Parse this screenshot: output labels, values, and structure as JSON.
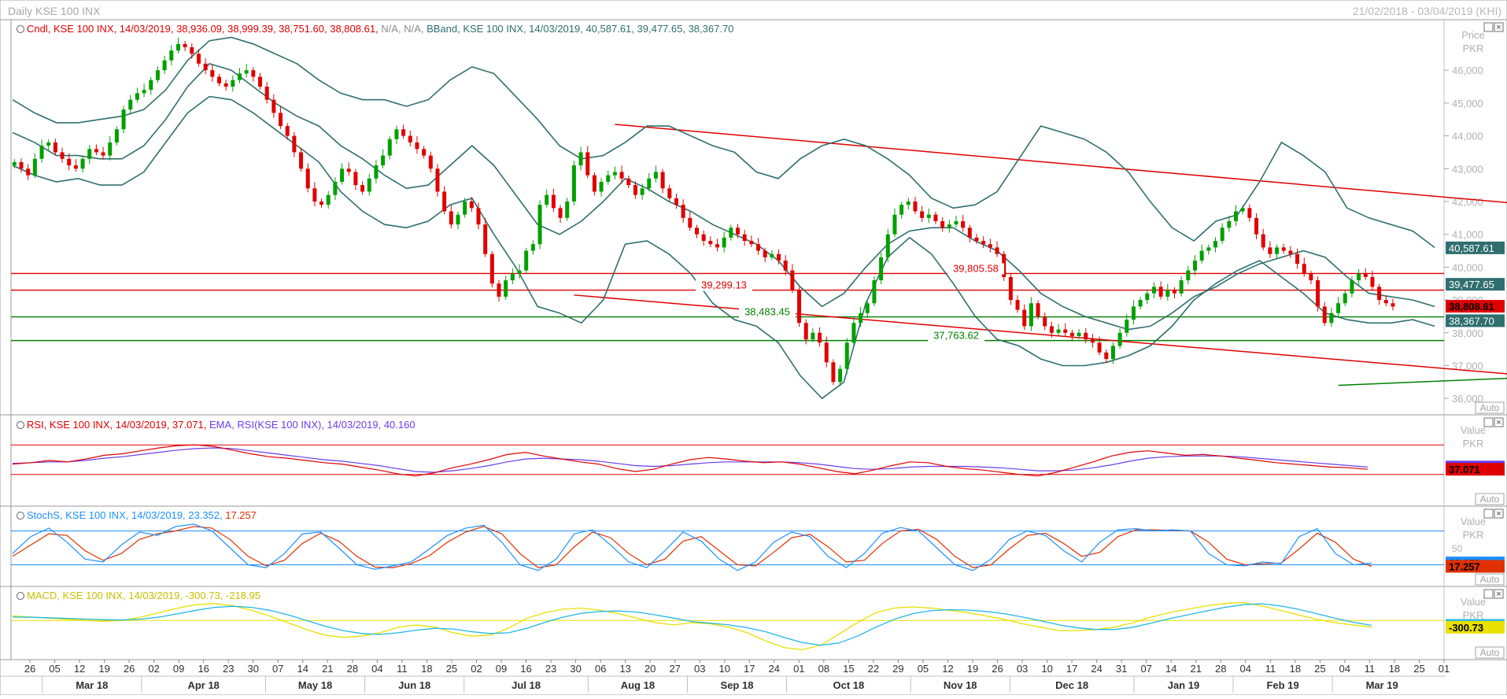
{
  "window": {
    "title": "Daily KSE 100 INX",
    "date_range": "21/02/2018 - 03/04/2019 (KHI)",
    "auto_label": "Auto"
  },
  "colors": {
    "candle_up": "#00a000",
    "candle_down": "#e00000",
    "bband": "#2f6f6f",
    "resistance": "#e00000",
    "support": "#008000",
    "rsi": "#e00000",
    "rsi_ema": "#6a3df0",
    "stoch_k": "#1e90ff",
    "stoch_d": "#e03000",
    "macd": "#e8e000",
    "macd_signal": "#20b8e8"
  },
  "chart_data": [
    {
      "type": "candlestick",
      "panel": "price",
      "legend": [
        {
          "text": "Cndl, KSE 100 INX, 14/03/2019, 38,936.09, 38,999.39, 38,751.60, 38,808.61, ",
          "color": "#e00000"
        },
        {
          "text": "N/A, N/A, ",
          "color": "#8a8a8a"
        },
        {
          "text": "BBand, KSE 100 INX, 14/03/2019, 40,587.61, 39,477.65, 38,367.70",
          "color": "#2f6f6f"
        }
      ],
      "axis_title": [
        "Price",
        "PKR"
      ],
      "ylim": [
        35500,
        47300
      ],
      "y_ticks": [
        36000,
        37000,
        38000,
        39000,
        40000,
        41000,
        42000,
        43000,
        44000,
        45000,
        46000
      ],
      "y_tick_labels": [
        "36,000",
        "37,000",
        "38,000",
        "39,000",
        "40,000",
        "41,000",
        "42,000",
        "43,000",
        "44,000",
        "45,000",
        "46,000"
      ],
      "x_ticks": [
        "26",
        "05",
        "12",
        "19",
        "26",
        "02",
        "09",
        "16",
        "23",
        "30",
        "07",
        "14",
        "21",
        "28",
        "04",
        "11",
        "18",
        "25",
        "02",
        "09",
        "16",
        "23",
        "30",
        "06",
        "13",
        "20",
        "27",
        "03",
        "10",
        "17",
        "24",
        "01",
        "08",
        "15",
        "22",
        "29",
        "05",
        "12",
        "19",
        "26",
        "03",
        "10",
        "17",
        "24",
        "31",
        "07",
        "14",
        "21",
        "28",
        "04",
        "11",
        "18",
        "25",
        "04",
        "11",
        "18",
        "25",
        "01"
      ],
      "months": [
        "Mar 18",
        "Apr 18",
        "May 18",
        "Jun 18",
        "Jul 18",
        "Aug 18",
        "Sep 18",
        "Oct 18",
        "Nov 18",
        "Dec 18",
        "Jan 19",
        "Feb 19",
        "Mar 19"
      ],
      "close": [
        43200,
        43000,
        42800,
        43300,
        43700,
        43800,
        43500,
        43300,
        43100,
        43000,
        43300,
        43600,
        43500,
        43400,
        43800,
        44200,
        44800,
        45100,
        45300,
        45400,
        45700,
        46000,
        46300,
        46600,
        46800,
        46700,
        46500,
        46200,
        46000,
        45800,
        45600,
        45500,
        45700,
        45900,
        46000,
        45800,
        45500,
        45100,
        44700,
        44300,
        44000,
        43500,
        43000,
        42400,
        42000,
        41900,
        42200,
        42600,
        43000,
        42900,
        42500,
        42300,
        42700,
        43100,
        43400,
        43900,
        44200,
        44000,
        43800,
        43600,
        43400,
        43000,
        42300,
        41700,
        41300,
        41600,
        42000,
        41800,
        41300,
        40400,
        39500,
        39100,
        39600,
        39800,
        39900,
        40500,
        40700,
        41900,
        42200,
        41800,
        41500,
        42000,
        43100,
        43500,
        42800,
        42300,
        42600,
        42800,
        42900,
        42700,
        42500,
        42200,
        42400,
        42700,
        42900,
        42400,
        42100,
        41900,
        41500,
        41200,
        41000,
        40800,
        40700,
        40600,
        40900,
        41200,
        41000,
        40800,
        40700,
        40500,
        40300,
        40400,
        40200,
        39900,
        39300,
        38300,
        37800,
        38000,
        37700,
        37100,
        36500,
        36900,
        37700,
        38300,
        38600,
        38900,
        39600,
        40300,
        41000,
        41600,
        41900,
        42000,
        41700,
        41500,
        41600,
        41400,
        41200,
        41300,
        41400,
        41200,
        40900,
        40800,
        40700,
        40600,
        40400,
        39700,
        39000,
        38700,
        38200,
        38900,
        38500,
        38200,
        38000,
        38100,
        38000,
        37900,
        38000,
        37800,
        37700,
        37400,
        37200,
        37600,
        38000,
        38400,
        38800,
        39000,
        39200,
        39400,
        39100,
        39300,
        39200,
        39600,
        39900,
        40200,
        40500,
        40600,
        40800,
        41200,
        41400,
        41700,
        41800,
        41500,
        41000,
        40600,
        40400,
        40600,
        40500,
        40400,
        40100,
        39800,
        39600,
        38800,
        38300,
        38600,
        38900,
        39200,
        39600,
        39800,
        39700,
        39400,
        39000,
        38900,
        38800
      ],
      "bb_upper": [
        45100,
        44700,
        44400,
        44400,
        44500,
        44600,
        44800,
        45400,
        46300,
        46900,
        47000,
        46800,
        46500,
        46200,
        45700,
        45300,
        45100,
        45100,
        44900,
        45100,
        45700,
        46100,
        45900,
        45200,
        44500,
        43700,
        43300,
        43400,
        43800,
        44300,
        44300,
        44000,
        43700,
        43500,
        42900,
        42700,
        43300,
        43700,
        43900,
        43700,
        43300,
        42800,
        42100,
        41800,
        41900,
        42300,
        43300,
        44300,
        44100,
        43900,
        43500,
        42900,
        42000,
        41200,
        40800,
        41400,
        41600,
        42600,
        43800,
        43400,
        42900,
        41800,
        41500,
        41300,
        41100,
        40600
      ],
      "bb_middle": [
        44100,
        43800,
        43400,
        43400,
        43300,
        43300,
        43700,
        44500,
        45500,
        46200,
        46000,
        45500,
        45000,
        44600,
        44300,
        43700,
        43300,
        42800,
        42400,
        42500,
        43100,
        43700,
        43100,
        42200,
        41300,
        41000,
        41400,
        42000,
        42700,
        42400,
        42000,
        41700,
        41300,
        41000,
        40700,
        40200,
        39400,
        38800,
        39200,
        40000,
        40700,
        41100,
        41200,
        41200,
        40800,
        40500,
        39900,
        39200,
        38800,
        38500,
        38300,
        38100,
        38200,
        38600,
        39100,
        39400,
        39800,
        40100,
        40300,
        40500,
        40300,
        39700,
        39200,
        39100,
        39000,
        38800
      ],
      "bb_lower": [
        43100,
        42800,
        42600,
        42700,
        42500,
        42500,
        42900,
        43800,
        44700,
        45200,
        45100,
        44700,
        44200,
        43700,
        43200,
        42300,
        41700,
        41300,
        41200,
        41400,
        41900,
        42100,
        41000,
        40000,
        38800,
        38600,
        38300,
        39000,
        40700,
        40800,
        40400,
        39800,
        38900,
        38400,
        38200,
        37700,
        36700,
        36000,
        36500,
        38900,
        40300,
        40900,
        40400,
        39500,
        38500,
        37800,
        37600,
        37200,
        37000,
        37000,
        37100,
        37300,
        37600,
        38200,
        39000,
        39500,
        39900,
        40200,
        39700,
        39200,
        38600,
        38400,
        38300,
        38300,
        38400,
        38200
      ],
      "hlines": [
        {
          "value": 39805.58,
          "label": "39,805.58",
          "color": "#e00000"
        },
        {
          "value": 39299.13,
          "label": "39,299.13",
          "color": "#e00000"
        },
        {
          "value": 38483.45,
          "label": "38,483.45",
          "color": "#008000"
        },
        {
          "value": 37763.62,
          "label": "37,763.62",
          "color": "#008000"
        }
      ],
      "trendlines": [
        {
          "color": "#e00000",
          "from": [
            88,
            44350
          ],
          "to": [
            313,
            40250
          ]
        },
        {
          "color": "#e00000",
          "from": [
            82,
            39150
          ],
          "to": [
            290,
            35500
          ]
        },
        {
          "color": "#008000",
          "from": [
            194,
            36400
          ],
          "to": [
            323,
            37500
          ]
        }
      ],
      "axis_badges": [
        {
          "value": 40587.61,
          "label": "40,587.61",
          "bg": "#2f6f6f",
          "fg": "#ffffff"
        },
        {
          "value": 39477.65,
          "label": "39,477.65",
          "bg": "#2f6f6f",
          "fg": "#ffffff"
        },
        {
          "value": 38808.61,
          "label": "38,808.61",
          "bg": "#e00000",
          "fg": "#000000"
        },
        {
          "value": 38367.7,
          "label": "38,367.70",
          "bg": "#2f6f6f",
          "fg": "#ffffff"
        }
      ]
    },
    {
      "type": "line",
      "panel": "rsi",
      "legend": [
        {
          "text": "RSI, KSE 100 INX, 14/03/2019, 37.071, ",
          "color": "#e00000"
        },
        {
          "text": "EMA, RSI(KSE 100 INX), 14/03/2019, 40.160",
          "color": "#6a3df0"
        }
      ],
      "axis_title": [
        "Value",
        "PKR"
      ],
      "ylim": [
        0,
        100
      ],
      "hlines": [
        70,
        30
      ],
      "rsi": [
        44,
        46,
        49,
        47,
        51,
        56,
        58,
        62,
        66,
        69,
        70,
        68,
        63,
        58,
        54,
        52,
        49,
        46,
        44,
        40,
        36,
        31,
        28,
        32,
        39,
        44,
        50,
        57,
        60,
        55,
        51,
        47,
        44,
        38,
        34,
        37,
        44,
        50,
        53,
        51,
        48,
        46,
        47,
        44,
        39,
        34,
        31,
        36,
        42,
        47,
        46,
        41,
        38,
        36,
        33,
        30,
        28,
        33,
        40,
        47,
        55,
        60,
        62,
        59,
        56,
        57,
        55,
        52,
        49,
        46,
        44,
        42,
        40,
        39,
        37
      ],
      "ema": [
        45,
        46,
        47,
        47,
        49,
        52,
        54,
        57,
        60,
        63,
        65,
        66,
        65,
        62,
        59,
        56,
        53,
        50,
        48,
        45,
        42,
        38,
        34,
        33,
        35,
        38,
        42,
        47,
        51,
        52,
        51,
        50,
        48,
        45,
        42,
        41,
        42,
        44,
        46,
        47,
        47,
        47,
        47,
        46,
        44,
        41,
        38,
        37,
        38,
        40,
        41,
        41,
        41,
        40,
        39,
        37,
        35,
        35,
        36,
        39,
        43,
        48,
        52,
        54,
        55,
        55,
        55,
        54,
        52,
        50,
        48,
        46,
        44,
        42,
        40
      ],
      "axis_badges": [
        {
          "value": 40.16,
          "label": "40.160",
          "bg": "#6a3df0",
          "fg": "#000000"
        },
        {
          "value": 37.071,
          "label": "37.071",
          "bg": "#e00000",
          "fg": "#000000"
        }
      ]
    },
    {
      "type": "line",
      "panel": "stochastic",
      "legend": [
        {
          "text": "StochS, KSE 100 INX, 14/03/2019, 23.352, ",
          "color": "#1e90ff"
        },
        {
          "text": "17.257",
          "color": "#e03000"
        }
      ],
      "axis_title": [
        "Value",
        "PKR"
      ],
      "ylim": [
        -10,
        110
      ],
      "y_ticks": [
        50
      ],
      "y_tick_labels": [
        "50"
      ],
      "hlines": [
        80,
        20
      ],
      "k": [
        40,
        70,
        85,
        60,
        30,
        25,
        55,
        78,
        72,
        88,
        92,
        80,
        50,
        20,
        15,
        40,
        75,
        78,
        50,
        20,
        12,
        18,
        25,
        48,
        72,
        85,
        90,
        60,
        20,
        10,
        30,
        75,
        82,
        55,
        25,
        15,
        45,
        78,
        62,
        30,
        10,
        25,
        60,
        78,
        70,
        35,
        15,
        40,
        76,
        86,
        80,
        50,
        20,
        10,
        30,
        65,
        80,
        72,
        45,
        25,
        60,
        82,
        84,
        80,
        82,
        80,
        40,
        20,
        18,
        25,
        22,
        70,
        84,
        40,
        20,
        23
      ],
      "d": [
        35,
        55,
        75,
        72,
        45,
        28,
        40,
        65,
        75,
        80,
        88,
        85,
        65,
        35,
        18,
        28,
        58,
        76,
        62,
        35,
        16,
        15,
        22,
        36,
        60,
        78,
        88,
        75,
        40,
        15,
        20,
        52,
        78,
        68,
        40,
        20,
        30,
        62,
        70,
        45,
        20,
        18,
        42,
        68,
        74,
        52,
        25,
        28,
        58,
        80,
        83,
        65,
        35,
        15,
        20,
        48,
        72,
        76,
        58,
        35,
        42,
        70,
        82,
        82,
        81,
        80,
        60,
        30,
        20,
        22,
        23,
        48,
        76,
        60,
        30,
        17
      ],
      "axis_badges": [
        {
          "value": 23.352,
          "label": "23.352",
          "bg": "#1e90ff",
          "fg": "#000000"
        },
        {
          "value": 17.257,
          "label": "17.257",
          "bg": "#e03000",
          "fg": "#000000"
        }
      ]
    },
    {
      "type": "line",
      "panel": "macd",
      "legend": [
        {
          "text": "MACD, KSE 100 INX, 14/03/2019, -300.73, -218.95",
          "color": "#c8c000"
        }
      ],
      "axis_title": [
        "Value",
        "PKR"
      ],
      "ylim": [
        -1600,
        1300
      ],
      "hlines": [
        0
      ],
      "macd": [
        200,
        150,
        100,
        50,
        0,
        -40,
        0,
        150,
        350,
        550,
        700,
        750,
        650,
        450,
        200,
        -100,
        -400,
        -650,
        -750,
        -700,
        -550,
        -300,
        -200,
        -300,
        -550,
        -700,
        -650,
        -350,
        100,
        350,
        500,
        550,
        450,
        300,
        100,
        -100,
        -200,
        -100,
        -150,
        -300,
        -550,
        -900,
        -1200,
        -1300,
        -1100,
        -600,
        -100,
        350,
        550,
        600,
        550,
        450,
        350,
        200,
        50,
        -150,
        -300,
        -450,
        -450,
        -400,
        -300,
        -100,
        150,
        350,
        500,
        650,
        750,
        800,
        650,
        450,
        250,
        50,
        -100,
        -200,
        -300
      ],
      "signal": [
        150,
        140,
        120,
        90,
        60,
        30,
        20,
        60,
        150,
        300,
        450,
        580,
        630,
        580,
        450,
        250,
        0,
        -250,
        -450,
        -580,
        -620,
        -550,
        -430,
        -350,
        -380,
        -500,
        -580,
        -550,
        -350,
        -80,
        150,
        320,
        400,
        420,
        370,
        250,
        100,
        -50,
        -120,
        -200,
        -320,
        -500,
        -750,
        -980,
        -1100,
        -1000,
        -700,
        -300,
        50,
        300,
        430,
        480,
        460,
        400,
        300,
        150,
        -20,
        -200,
        -330,
        -400,
        -400,
        -300,
        -120,
        80,
        250,
        420,
        580,
        700,
        740,
        650,
        500,
        300,
        100,
        -80,
        -219
      ],
      "axis_badges": [
        {
          "value": -218.95,
          "label": "-218.95",
          "bg": "#20b8e8",
          "fg": "#000000"
        },
        {
          "value": -300.73,
          "label": "-300.73",
          "bg": "#e8e000",
          "fg": "#000000"
        }
      ]
    }
  ]
}
